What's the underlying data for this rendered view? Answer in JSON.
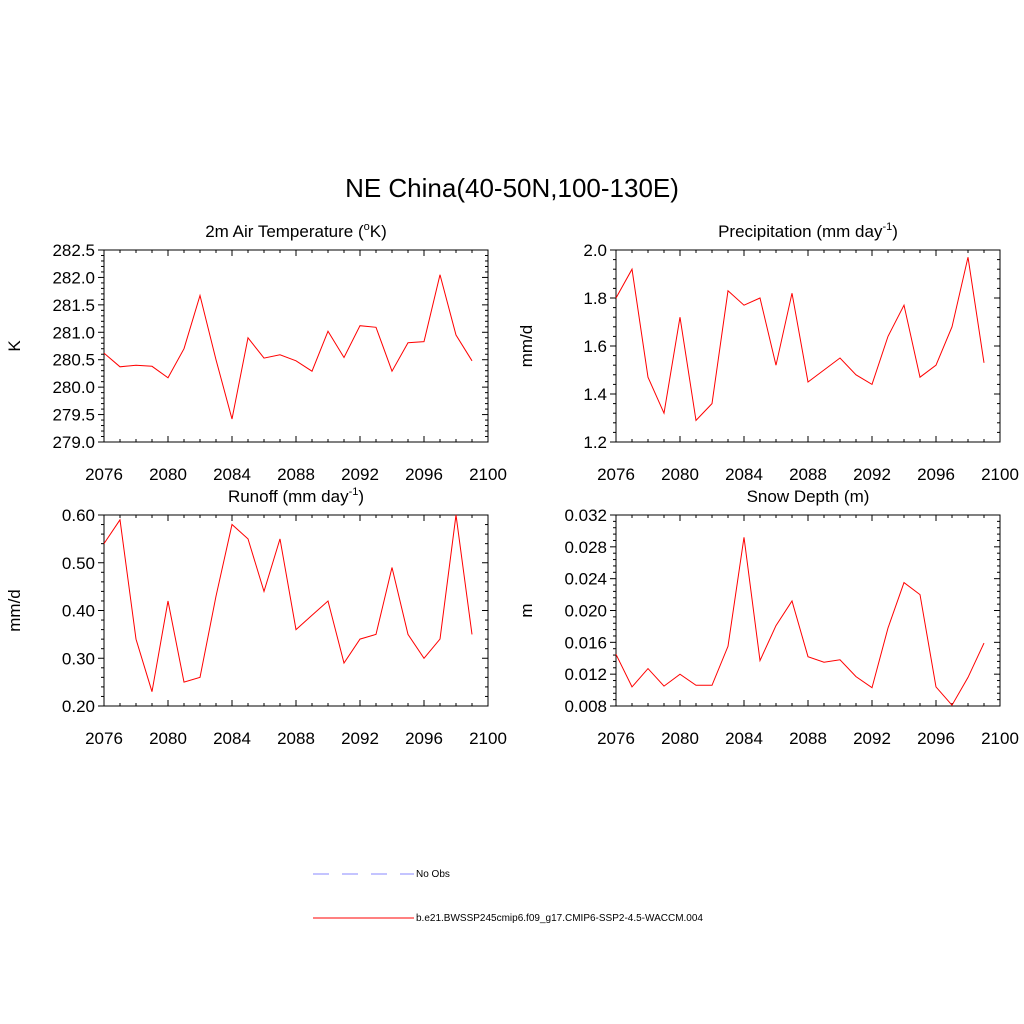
{
  "title": "NE China(40-50N,100-130E)",
  "line_color": "#ff0000",
  "obs_color": "#a0a0ff",
  "legend": {
    "obs_label": "No Obs",
    "model_label": "b.e21.BWSSP245cmip6.f09_g17.CMIP6-SSP2-4.5-WACCM.004"
  },
  "chart_data": [
    {
      "type": "line",
      "title": "2m Air Temperature (",
      "title_sup": "o",
      "title_tail": "K)",
      "ylabel": "K",
      "xlim": [
        2076,
        2100
      ],
      "ylim": [
        279.0,
        282.5
      ],
      "xticks": [
        2076,
        2080,
        2084,
        2088,
        2092,
        2096,
        2100
      ],
      "yticks": [
        279.0,
        279.5,
        280.0,
        280.5,
        281.0,
        281.5,
        282.0,
        282.5
      ],
      "ytick_labels": [
        "279.0",
        "279.5",
        "280.0",
        "280.5",
        "281.0",
        "281.5",
        "282.0",
        "282.5"
      ],
      "x": [
        2076,
        2077,
        2078,
        2079,
        2080,
        2081,
        2082,
        2083,
        2084,
        2085,
        2086,
        2087,
        2088,
        2089,
        2090,
        2091,
        2092,
        2093,
        2094,
        2095,
        2096,
        2097,
        2098,
        2099
      ],
      "values": [
        280.62,
        280.37,
        280.4,
        280.38,
        280.17,
        280.7,
        281.67,
        280.5,
        279.42,
        280.9,
        280.53,
        280.59,
        280.48,
        280.29,
        281.02,
        280.54,
        281.12,
        281.09,
        280.29,
        280.81,
        280.83,
        282.05,
        280.95,
        280.48
      ]
    },
    {
      "type": "line",
      "title": "Precipitation (mm day",
      "title_sup": "-1",
      "title_tail": ")",
      "ylabel": "mm/d",
      "xlim": [
        2076,
        2100
      ],
      "ylim": [
        1.2,
        2.0
      ],
      "xticks": [
        2076,
        2080,
        2084,
        2088,
        2092,
        2096,
        2100
      ],
      "yticks": [
        1.2,
        1.4,
        1.6,
        1.8,
        2.0
      ],
      "ytick_labels": [
        "1.2",
        "1.4",
        "1.6",
        "1.8",
        "2.0"
      ],
      "x": [
        2076,
        2077,
        2078,
        2079,
        2080,
        2081,
        2082,
        2083,
        2084,
        2085,
        2086,
        2087,
        2088,
        2089,
        2090,
        2091,
        2092,
        2093,
        2094,
        2095,
        2096,
        2097,
        2098,
        2099
      ],
      "values": [
        1.8,
        1.92,
        1.47,
        1.32,
        1.72,
        1.29,
        1.36,
        1.83,
        1.77,
        1.8,
        1.52,
        1.82,
        1.45,
        1.5,
        1.55,
        1.48,
        1.44,
        1.64,
        1.77,
        1.47,
        1.52,
        1.68,
        1.97,
        1.53
      ]
    },
    {
      "type": "line",
      "title": "Runoff (mm day",
      "title_sup": "-1",
      "title_tail": ")",
      "ylabel": "mm/d",
      "xlim": [
        2076,
        2100
      ],
      "ylim": [
        0.2,
        0.6
      ],
      "xticks": [
        2076,
        2080,
        2084,
        2088,
        2092,
        2096,
        2100
      ],
      "yticks": [
        0.2,
        0.3,
        0.4,
        0.5,
        0.6
      ],
      "ytick_labels": [
        "0.20",
        "0.30",
        "0.40",
        "0.50",
        "0.60"
      ],
      "x": [
        2076,
        2077,
        2078,
        2079,
        2080,
        2081,
        2082,
        2083,
        2084,
        2085,
        2086,
        2087,
        2088,
        2089,
        2090,
        2091,
        2092,
        2093,
        2094,
        2095,
        2096,
        2097,
        2098,
        2099
      ],
      "values": [
        0.54,
        0.59,
        0.34,
        0.23,
        0.42,
        0.25,
        0.26,
        0.43,
        0.58,
        0.55,
        0.44,
        0.55,
        0.36,
        0.39,
        0.42,
        0.29,
        0.34,
        0.35,
        0.49,
        0.35,
        0.3,
        0.34,
        0.6,
        0.35
      ]
    },
    {
      "type": "line",
      "title": "Snow Depth (m)",
      "title_sup": "",
      "title_tail": "",
      "ylabel": "m",
      "xlim": [
        2076,
        2100
      ],
      "ylim": [
        0.008,
        0.032
      ],
      "xticks": [
        2076,
        2080,
        2084,
        2088,
        2092,
        2096,
        2100
      ],
      "yticks": [
        0.008,
        0.012,
        0.016,
        0.02,
        0.024,
        0.028,
        0.032
      ],
      "ytick_labels": [
        "0.008",
        "0.012",
        "0.016",
        "0.020",
        "0.024",
        "0.028",
        "0.032"
      ],
      "x": [
        2076,
        2077,
        2078,
        2079,
        2080,
        2081,
        2082,
        2083,
        2084,
        2085,
        2086,
        2087,
        2088,
        2089,
        2090,
        2091,
        2092,
        2093,
        2094,
        2095,
        2096,
        2097,
        2098,
        2099
      ],
      "values": [
        0.0145,
        0.0104,
        0.0127,
        0.0105,
        0.012,
        0.0106,
        0.0106,
        0.0155,
        0.0292,
        0.0137,
        0.0181,
        0.0212,
        0.0142,
        0.0135,
        0.0138,
        0.0117,
        0.0103,
        0.0178,
        0.0235,
        0.022,
        0.0104,
        0.0081,
        0.0116,
        0.0159
      ]
    }
  ]
}
